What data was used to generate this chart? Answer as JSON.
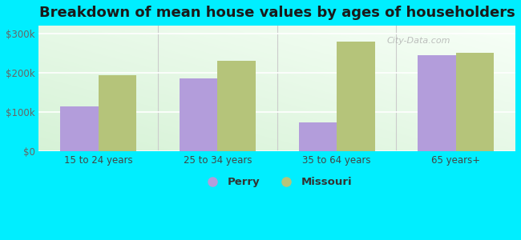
{
  "title": "Breakdown of mean house values by ages of householders",
  "categories": [
    "15 to 24 years",
    "25 to 34 years",
    "35 to 64 years",
    "65 years+"
  ],
  "perry_values": [
    115000,
    185000,
    75000,
    245000
  ],
  "missouri_values": [
    195000,
    230000,
    280000,
    250000
  ],
  "perry_color": "#b39ddb",
  "missouri_color": "#b5c47a",
  "background_color": "#00eeff",
  "ylim": [
    0,
    320000
  ],
  "yticks": [
    0,
    100000,
    200000,
    300000
  ],
  "ytick_labels": [
    "$0",
    "$100k",
    "$200k",
    "$300k"
  ],
  "legend_perry": "Perry",
  "legend_missouri": "Missouri",
  "bar_width": 0.32,
  "title_fontsize": 13,
  "tick_fontsize": 8.5,
  "legend_fontsize": 9.5,
  "watermark": "City-Data.com",
  "plot_bg_color1": "#d8efd8",
  "plot_bg_color2": "#f5fff5"
}
